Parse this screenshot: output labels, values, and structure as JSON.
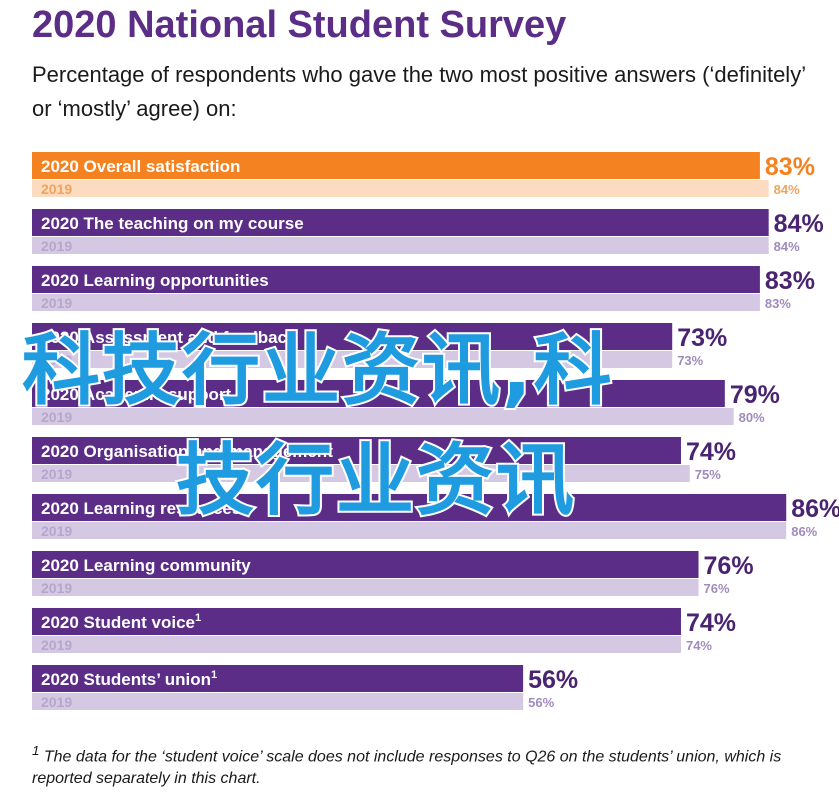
{
  "title": "2020 National Student Survey",
  "subtitle": "Percentage of respondents who gave the two most positive answers (‘definitely’ or ‘mostly’ agree) on:",
  "footnote": "The data for the ‘student voice’ scale does not include responses to Q26 on the students’ union, which is reported separately in this chart.",
  "footnote_marker": "1",
  "watermark": {
    "line1": "科技行业资讯,科",
    "line2": "技行业资讯"
  },
  "colors": {
    "highlight_2020": "#f58220",
    "highlight_2019": "#fcdcc0",
    "bar_2020": "#5b2d87",
    "bar_2019": "#d5c8e3",
    "label_2019": "#b7a6cc",
    "pct_2020": "#4a2470",
    "pct_2020_highlight": "#f58220",
    "watermark": "#1f9be0"
  },
  "chart_data": {
    "type": "bar",
    "orientation": "horizontal",
    "title": "2020 National Student Survey",
    "xlim": [
      0,
      100
    ],
    "unit": "%",
    "highlighted_category": "Overall satisfaction",
    "categories": [
      "Overall satisfaction",
      "The teaching on my course",
      "Learning opportunities",
      "Assessment and feedback",
      "Academic support",
      "Organisation and management",
      "Learning resources",
      "Learning community",
      "Student voice",
      "Students’ union"
    ],
    "category_footnote_markers": [
      "",
      "",
      "",
      "",
      "",
      "",
      "",
      "",
      "1",
      "1"
    ],
    "series": [
      {
        "name": "2020",
        "values": [
          83,
          84,
          83,
          73,
          79,
          74,
          86,
          76,
          74,
          56
        ],
        "labels": [
          "83%",
          "84%",
          "83%",
          "73%",
          "79%",
          "74%",
          "86%",
          "76%",
          "74%",
          "56%"
        ]
      },
      {
        "name": "2019",
        "values": [
          84,
          84,
          83,
          73,
          80,
          75,
          86,
          76,
          74,
          56
        ],
        "labels": [
          "84%",
          "84%",
          "83%",
          "73%",
          "80%",
          "75%",
          "86%",
          "76%",
          "74%",
          "56%"
        ]
      }
    ]
  }
}
